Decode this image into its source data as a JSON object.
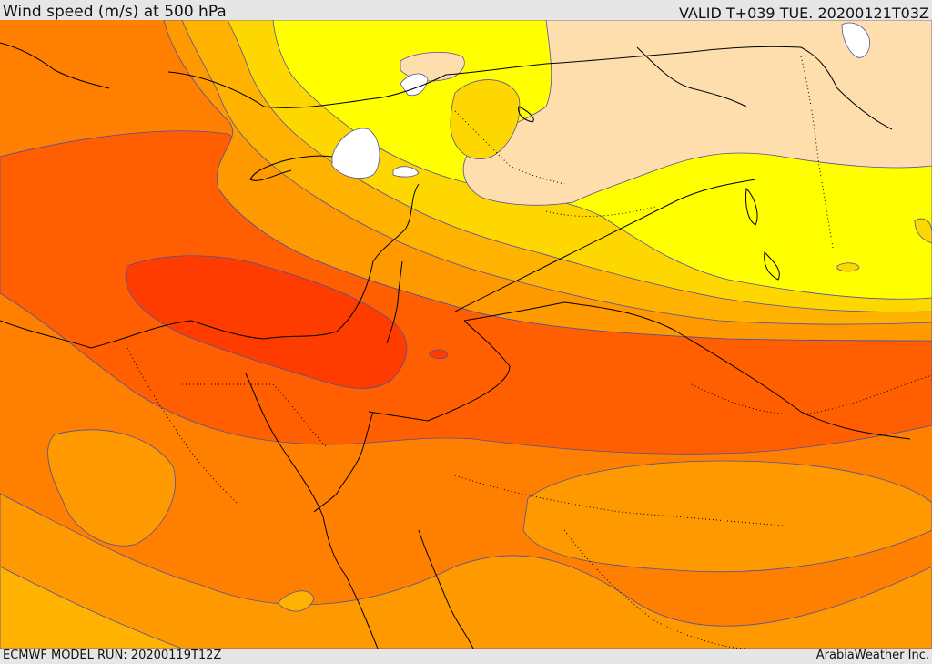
{
  "header": {
    "title": "Wind speed (m/s) at 500 hPa",
    "valid_time": "VALID T+039 TUE. 20200121T03Z"
  },
  "footer": {
    "model_run": "ECMWF MODEL RUN: 20200119T12Z",
    "credit": "ArabiaWeather Inc."
  },
  "map": {
    "colors": {
      "band_darkest": "#ff3c00",
      "band_dark": "#ff5f00",
      "band_mid": "#ff7f00",
      "band_light": "#ff9900",
      "band_lighter": "#ffb300",
      "band_gold": "#ffd700",
      "band_yellow": "#ffff00",
      "band_cream": "#ffdead",
      "band_white": "#ffffff",
      "coastline": "#000000",
      "contour": "#5050a0"
    }
  }
}
